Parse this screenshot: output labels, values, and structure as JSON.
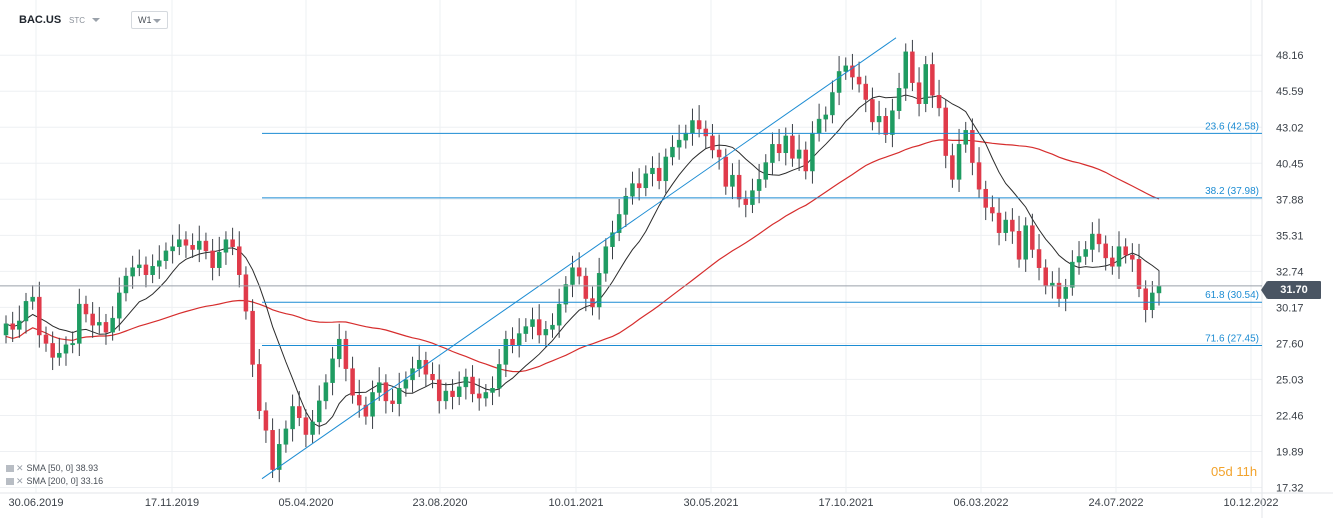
{
  "header": {
    "symbol": "BAC.US",
    "instrument_type": "STC",
    "timeframe": "W1"
  },
  "indicators": [
    {
      "label": "SMA [50, 0]",
      "value": "38.93",
      "color": "#2b2b2b"
    },
    {
      "label": "SMA [200, 0]",
      "value": "33.16",
      "color": "#d62d2d"
    }
  ],
  "countdown": {
    "days": "05d",
    "hours": "11h"
  },
  "current_price": "31.70",
  "colors": {
    "up": "#1f9c62",
    "down": "#e03a4a",
    "fib": "#1c8cd3",
    "sma50": "#2b2b2b",
    "sma200": "#d62d2d"
  },
  "chart_data": {
    "type": "candlestick",
    "y_axis_ticks": [
      "48.16",
      "45.59",
      "43.02",
      "40.45",
      "37.88",
      "35.31",
      "32.74",
      "30.17",
      "27.60",
      "25.03",
      "22.46",
      "19.89",
      "17.32"
    ],
    "x_axis_ticks": [
      "30.06.2019",
      "17.11.2019",
      "05.04.2020",
      "23.08.2020",
      "10.01.2021",
      "30.05.2021",
      "17.10.2021",
      "06.03.2022",
      "24.07.2022",
      "10.12.2022"
    ],
    "ylim": [
      17.32,
      49.5
    ],
    "fibonacci_levels": [
      {
        "label": "23.6 (42.58)",
        "value": 42.58
      },
      {
        "label": "38.2 (37.98)",
        "value": 37.98
      },
      {
        "label": "61.8 (30.54)",
        "value": 30.54
      },
      {
        "label": "71.6 (27.45)",
        "value": 27.45
      }
    ],
    "trendline": {
      "from": {
        "date": "2020-03-20",
        "value": 17.95
      },
      "to": {
        "date": "2021-11-05",
        "value": 49.4
      }
    },
    "current_price": 31.7,
    "closes": [
      29.0,
      28.6,
      29.2,
      30.6,
      30.9,
      28.2,
      27.6,
      26.6,
      26.9,
      27.5,
      27.6,
      30.4,
      29.7,
      28.9,
      29.1,
      28.4,
      29.4,
      31.2,
      32.4,
      33.0,
      33.2,
      32.5,
      33.1,
      33.5,
      34.2,
      34.5,
      35.0,
      34.6,
      34.3,
      34.9,
      34.2,
      33.0,
      34.1,
      35.0,
      34.5,
      32.5,
      29.9,
      26.1,
      22.8,
      21.4,
      18.6,
      20.4,
      21.5,
      23.1,
      22.3,
      21.1,
      22.0,
      23.5,
      24.8,
      26.5,
      27.9,
      25.8,
      23.9,
      23.2,
      22.4,
      24.1,
      24.8,
      23.5,
      23.3,
      24.4,
      25.0,
      25.8,
      26.4,
      25.4,
      25.0,
      23.5,
      24.2,
      23.8,
      24.5,
      25.2,
      24.0,
      23.7,
      24.1,
      24.4,
      26.1,
      27.9,
      27.5,
      28.3,
      28.8,
      29.3,
      28.2,
      28.6,
      28.9,
      30.4,
      31.8,
      33.0,
      32.4,
      30.8,
      30.2,
      32.6,
      34.5,
      35.5,
      36.8,
      38.1,
      39.0,
      38.7,
      39.7,
      40.1,
      39.2,
      40.9,
      41.6,
      42.1,
      42.6,
      43.5,
      42.9,
      42.4,
      41.4,
      40.9,
      38.8,
      39.6,
      37.9,
      37.5,
      38.5,
      39.3,
      40.5,
      41.8,
      41.2,
      42.4,
      40.8,
      41.4,
      39.9,
      42.6,
      43.6,
      43.9,
      45.5,
      47.0,
      47.4,
      46.6,
      46.1,
      45.0,
      43.4,
      43.8,
      42.5,
      44.2,
      45.8,
      48.4,
      46.2,
      44.7,
      47.5,
      45.3,
      44.4,
      41.0,
      39.3,
      41.8,
      42.8,
      40.5,
      38.6,
      37.3,
      36.9,
      35.5,
      36.4,
      35.6,
      33.6,
      36.0,
      34.3,
      33.0,
      31.7,
      31.9,
      30.8,
      31.6,
      33.4,
      33.8,
      34.3,
      35.4,
      34.7,
      33.7,
      33.1,
      34.5,
      33.9,
      33.6,
      31.5,
      30.0,
      31.2,
      31.7
    ],
    "sma50_visible_from_index": 0,
    "sma200_visible_from_index": 0
  }
}
